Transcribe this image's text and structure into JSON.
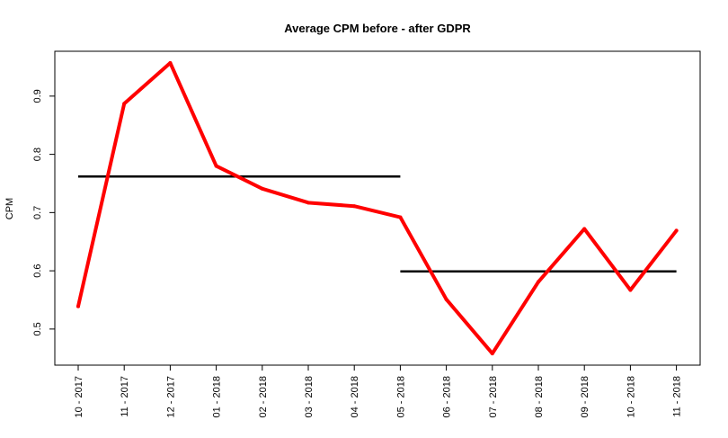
{
  "chart_data": {
    "type": "line",
    "title": "Average CPM before - after GDPR",
    "xlabel": "",
    "ylabel": "CPM",
    "categories": [
      "10 - 2017",
      "11 - 2017",
      "12 - 2017",
      "01 - 2018",
      "02 - 2018",
      "03 - 2018",
      "04 - 2018",
      "05 - 2018",
      "06 - 2018",
      "07 - 2018",
      "08 - 2018",
      "09 - 2018",
      "10 - 2018",
      "11 - 2018"
    ],
    "series": [
      {
        "color": "#ff0000",
        "values": [
          0.539,
          0.887,
          0.957,
          0.78,
          0.741,
          0.717,
          0.711,
          0.692,
          0.551,
          0.458,
          0.581,
          0.672,
          0.567,
          0.669
        ]
      }
    ],
    "reference_lines": [
      {
        "color": "#000000",
        "value": 0.762,
        "from": "10 - 2017",
        "to": "05 - 2018"
      },
      {
        "color": "#000000",
        "value": 0.599,
        "from": "05 - 2018",
        "to": "11 - 2018"
      }
    ],
    "yticks": [
      0.5,
      0.6,
      0.7,
      0.8,
      0.9
    ],
    "ytick_labels": [
      "0.5",
      "0.6",
      "0.7",
      "0.8",
      "0.9"
    ],
    "ylim": [
      0.438,
      0.977
    ],
    "grid": false,
    "legend": "none"
  }
}
